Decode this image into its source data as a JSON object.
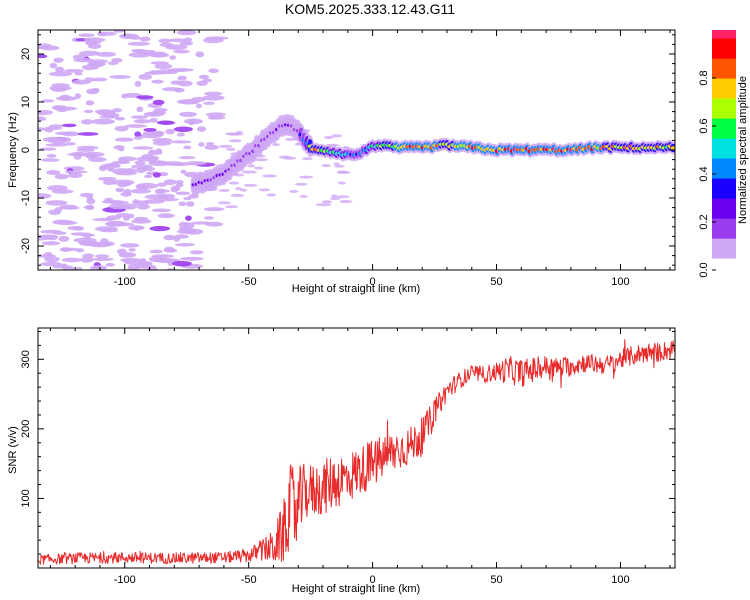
{
  "title": "KOM5.2025.333.12.43.G11",
  "colors": {
    "snr_line": "#e82a2a",
    "frame": "#000000",
    "colormap": [
      "#ffffff",
      "#cfa8f5",
      "#9a3cf0",
      "#6a00f0",
      "#1a00ff",
      "#0088ff",
      "#00e0e0",
      "#00ff40",
      "#aaff00",
      "#ffcc00",
      "#ff5500",
      "#ff0000",
      "#ff2266"
    ]
  },
  "chart_data": [
    {
      "type": "heatmap",
      "name": "spectrogram",
      "xlabel": "Height of straight line (km)",
      "ylabel": "Frequency (Hz)",
      "xlim": [
        -135,
        122
      ],
      "ylim": [
        -25,
        25
      ],
      "xticks": [
        -100,
        -50,
        0,
        50,
        100
      ],
      "yticks": [
        -20,
        -10,
        0,
        10,
        20
      ],
      "xtick_labels": [
        "-100",
        "-50",
        "0",
        "50",
        "100"
      ],
      "ytick_labels": [
        "-20",
        "-10",
        "0",
        "10",
        "20"
      ],
      "ridge": {
        "description": "dominant frequency track",
        "x": [
          -72,
          -62,
          -55,
          -48,
          -42,
          -37,
          -33,
          -30,
          -27,
          -24,
          -20,
          -15,
          -10,
          -5,
          0,
          10,
          20,
          30,
          40,
          50,
          60,
          70,
          80,
          90,
          100,
          110,
          122
        ],
        "y": [
          -7.5,
          -5.5,
          -3,
          0,
          3,
          4.8,
          5.2,
          4,
          1.5,
          0.3,
          0,
          -0.5,
          -1,
          -0.8,
          1,
          0.5,
          0.5,
          1,
          0.5,
          0,
          0,
          0,
          0,
          0.5,
          0.5,
          0.5,
          0.5
        ],
        "amplitude": [
          0.22,
          0.25,
          0.2,
          0.18,
          0.18,
          0.22,
          0.25,
          0.2,
          0.45,
          0.8,
          0.7,
          0.55,
          0.45,
          0.4,
          0.55,
          0.85,
          0.9,
          0.8,
          0.9,
          0.95,
          0.95,
          0.95,
          0.95,
          0.85,
          0.8,
          0.8,
          0.75
        ]
      }
    },
    {
      "type": "colorbar",
      "name": "amplitude-colorbar",
      "label": "Normalized spectral amplitude",
      "range": [
        0,
        1
      ],
      "ticks": [
        0.0,
        0.2,
        0.4,
        0.6,
        0.8
      ],
      "tick_labels": [
        "0.0",
        "0.2",
        "0.4",
        "0.6",
        "0.8"
      ]
    },
    {
      "type": "line",
      "name": "snr",
      "xlabel": "Height of straight line (km)",
      "ylabel": "SNR (v/v)",
      "xlim": [
        -135,
        122
      ],
      "ylim": [
        0,
        345
      ],
      "xticks": [
        -100,
        -50,
        0,
        50,
        100
      ],
      "yticks": [
        100,
        200,
        300
      ],
      "xtick_labels": [
        "-100",
        "-50",
        "0",
        "50",
        "100"
      ],
      "ytick_labels": [
        "100",
        "200",
        "300"
      ],
      "x": [
        -135,
        -120,
        -100,
        -80,
        -60,
        -50,
        -45,
        -40,
        -36,
        -33,
        -30,
        -28,
        -25,
        -20,
        -15,
        -10,
        -5,
        0,
        5,
        10,
        15,
        20,
        25,
        30,
        35,
        40,
        45,
        50,
        55,
        60,
        65,
        70,
        75,
        80,
        85,
        90,
        95,
        100,
        105,
        110,
        115,
        122
      ],
      "y": [
        12,
        14,
        15,
        14,
        15,
        18,
        25,
        30,
        50,
        90,
        80,
        110,
        110,
        115,
        125,
        130,
        140,
        150,
        160,
        170,
        175,
        190,
        225,
        255,
        270,
        280,
        278,
        282,
        285,
        280,
        285,
        290,
        288,
        290,
        295,
        293,
        292,
        300,
        305,
        310,
        310,
        315
      ],
      "noise": [
        7,
        8,
        8,
        8,
        8,
        10,
        15,
        25,
        45,
        60,
        65,
        40,
        40,
        40,
        40,
        38,
        35,
        35,
        32,
        30,
        28,
        26,
        18,
        15,
        12,
        12,
        12,
        14,
        20,
        20,
        18,
        16,
        14,
        15,
        14,
        14,
        14,
        14,
        14,
        15,
        14,
        14
      ]
    }
  ]
}
